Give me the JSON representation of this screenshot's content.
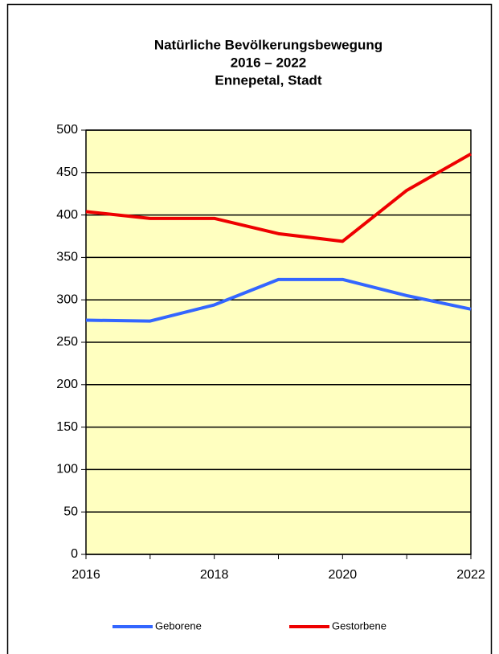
{
  "chart_data": {
    "type": "line",
    "title": [
      "Natürliche Bevölkerungsbewegung",
      "2016 – 2022",
      "Ennepetal, Stadt"
    ],
    "x": [
      2016,
      2017,
      2018,
      2019,
      2020,
      2021,
      2022
    ],
    "xlim": [
      2016,
      2022
    ],
    "xticks": [
      2016,
      2018,
      2020,
      2022
    ],
    "ylim": [
      0,
      500
    ],
    "yticks": [
      0,
      50,
      100,
      150,
      200,
      250,
      300,
      350,
      400,
      450,
      500
    ],
    "grid": true,
    "legend": "bottom",
    "series": [
      {
        "name": "Geborene",
        "color": "#3366ff",
        "values": [
          276,
          275,
          294,
          324,
          324,
          305,
          289
        ]
      },
      {
        "name": "Gestorbene",
        "color": "#ee0000",
        "values": [
          404,
          396,
          396,
          378,
          369,
          429,
          472
        ]
      }
    ]
  }
}
